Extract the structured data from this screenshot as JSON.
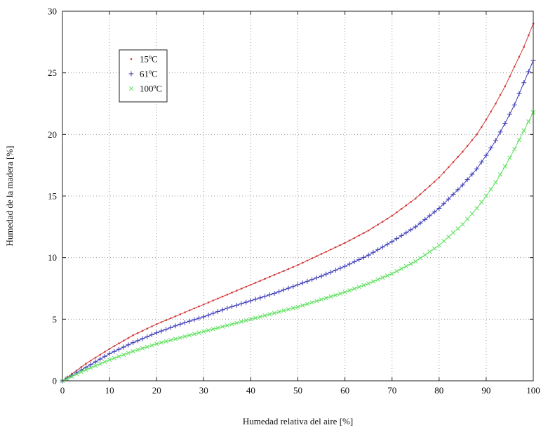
{
  "chart_data": {
    "type": "line",
    "title": "",
    "xlabel": "Humedad relativa del aire [%]",
    "ylabel": "Humedad de la madera [%]",
    "xlim": [
      0,
      100
    ],
    "ylim": [
      0,
      30
    ],
    "xticks": [
      "0",
      "10",
      "20",
      "30",
      "40",
      "50",
      "60",
      "70",
      "80",
      "90",
      "100"
    ],
    "yticks": [
      "0",
      "5",
      "10",
      "15",
      "20",
      "25",
      "30"
    ],
    "grid": true,
    "legend_position": "top-left",
    "series": [
      {
        "name": "15ºC",
        "color": "#d23a3a",
        "marker": "dot",
        "x": [
          0,
          5,
          10,
          15,
          20,
          25,
          30,
          35,
          40,
          45,
          50,
          55,
          60,
          65,
          70,
          75,
          80,
          85,
          88,
          90,
          92,
          94,
          96,
          98,
          100
        ],
        "y": [
          0,
          1.4,
          2.6,
          3.7,
          4.6,
          5.4,
          6.2,
          7.0,
          7.8,
          8.6,
          9.4,
          10.3,
          11.2,
          12.2,
          13.4,
          14.8,
          16.5,
          18.6,
          20.0,
          21.2,
          22.5,
          23.9,
          25.5,
          27.1,
          29.0
        ]
      },
      {
        "name": "61ºC",
        "color": "#3a3ab8",
        "marker": "plus",
        "x": [
          0,
          5,
          10,
          15,
          20,
          25,
          30,
          35,
          40,
          45,
          50,
          55,
          60,
          65,
          70,
          75,
          80,
          85,
          88,
          90,
          92,
          94,
          96,
          98,
          100
        ],
        "y": [
          0,
          1.1,
          2.2,
          3.1,
          3.9,
          4.6,
          5.2,
          5.9,
          6.5,
          7.1,
          7.8,
          8.5,
          9.3,
          10.2,
          11.3,
          12.5,
          14.0,
          15.9,
          17.2,
          18.3,
          19.5,
          20.9,
          22.4,
          24.2,
          26.0
        ]
      },
      {
        "name": "100ºC",
        "color": "#5fe05f",
        "marker": "x",
        "x": [
          0,
          5,
          10,
          15,
          20,
          25,
          30,
          35,
          40,
          45,
          50,
          55,
          60,
          65,
          70,
          75,
          80,
          85,
          88,
          90,
          92,
          94,
          96,
          98,
          100
        ],
        "y": [
          0,
          0.9,
          1.7,
          2.4,
          3.0,
          3.5,
          4.0,
          4.5,
          5.0,
          5.5,
          6.0,
          6.6,
          7.2,
          7.9,
          8.7,
          9.7,
          11.0,
          12.7,
          14.0,
          15.0,
          16.1,
          17.4,
          18.8,
          20.3,
          21.8
        ]
      }
    ]
  }
}
